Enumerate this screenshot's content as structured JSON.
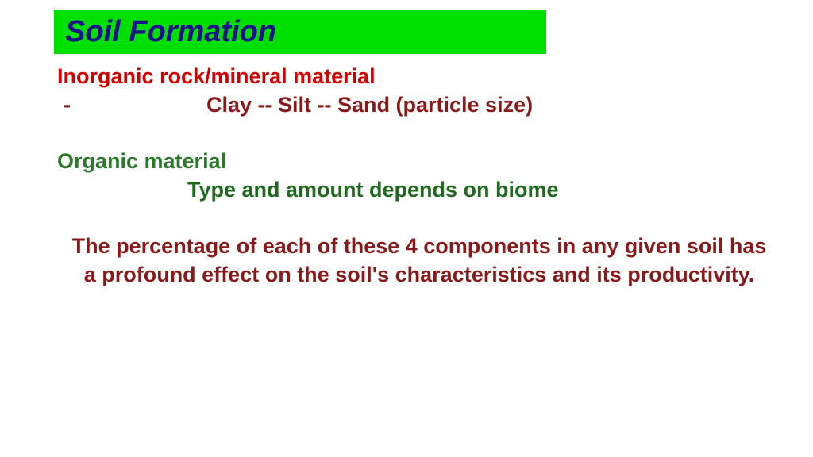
{
  "title": {
    "text": "Soil Formation",
    "color": "#19128b",
    "background": "#00e000",
    "fontsize": 38
  },
  "content": {
    "fontsize": 27,
    "colors": {
      "red": "#d40000",
      "maroon": "#8a1a1a",
      "green": "#2b7a2b",
      "darkgreen": "#1f6a1f"
    },
    "line1": "Inorganic rock/mineral material",
    "line2_dash": "-",
    "line2_rest": "Clay --  Silt -- Sand (particle size)",
    "line3": "Organic material",
    "line4": "Type and amount depends on biome",
    "para": "The percentage of each of these 4 components in any given soil has a profound effect on the soil's characteristics and its productivity."
  }
}
